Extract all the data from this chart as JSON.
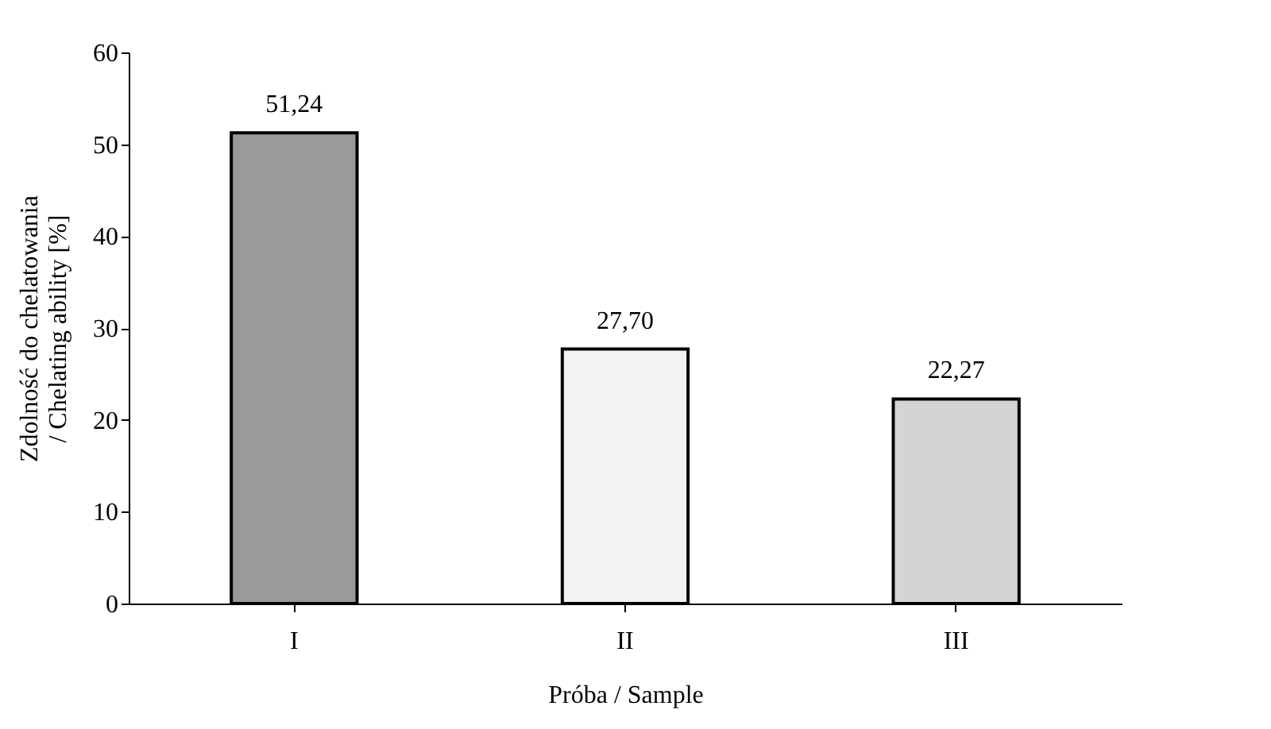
{
  "chart_data": {
    "type": "bar",
    "xlabel": "Próba / Sample",
    "ylabel": "Zdolność do chelatowania / Chelating ability [%]",
    "categories": [
      "I",
      "II",
      "III"
    ],
    "values": [
      51.24,
      27.7,
      22.27
    ],
    "value_labels": [
      "51,24",
      "27,70",
      "22,27"
    ],
    "colors": [
      "#9a9a9a",
      "#f2f2f2",
      "#d4d4d4"
    ],
    "ylim": [
      0,
      60
    ],
    "yticks": [
      0,
      10,
      20,
      30,
      40,
      50,
      60
    ],
    "grid": false
  }
}
